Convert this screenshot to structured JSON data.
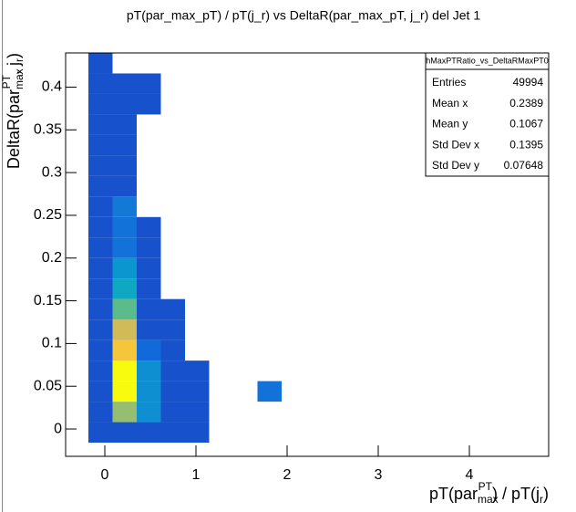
{
  "chart_data": {
    "type": "heatmap",
    "title": "pT(par_max_pT) / pT(j_r) vs DeltaR(par_max_pT, j_r) del Jet 1",
    "x_label": [
      "pT(par",
      "max",
      "PT",
      ") / pT(j",
      "r",
      ")"
    ],
    "y_label": [
      "DeltaR(par",
      "max",
      "PT",
      ", j",
      "r",
      ")"
    ],
    "x_edges": [
      -0.18,
      0.085,
      0.35,
      0.615,
      0.88,
      1.145,
      1.41,
      1.675,
      1.94
    ],
    "y_edges": [
      -0.016,
      0.008,
      0.032,
      0.056,
      0.08,
      0.104,
      0.128,
      0.152,
      0.176,
      0.2,
      0.224,
      0.248,
      0.272,
      0.296,
      0.32,
      0.344,
      0.368,
      0.392,
      0.416,
      0.44
    ],
    "z": [
      [
        800,
        800,
        800,
        800,
        800,
        800,
        800,
        800,
        800,
        800,
        800,
        800,
        800,
        800,
        800,
        800,
        800,
        800,
        800
      ],
      [
        800,
        5200,
        8000,
        8000,
        6800,
        6000,
        4500,
        3200,
        2600,
        1600,
        1600,
        1800,
        800,
        800,
        800,
        800,
        800,
        800,
        null
      ],
      [
        800,
        2400,
        2400,
        2400,
        1400,
        800,
        800,
        800,
        800,
        800,
        800,
        null,
        null,
        null,
        null,
        null,
        800,
        800,
        null
      ],
      [
        800,
        800,
        800,
        800,
        800,
        800,
        800,
        null,
        null,
        null,
        null,
        null,
        null,
        null,
        null,
        null,
        null,
        null,
        null
      ],
      [
        800,
        800,
        800,
        800,
        null,
        null,
        null,
        null,
        null,
        null,
        null,
        null,
        null,
        null,
        null,
        null,
        null,
        null,
        null
      ],
      [
        null,
        null,
        null,
        null,
        null,
        null,
        null,
        null,
        null,
        null,
        null,
        null,
        null,
        null,
        null,
        null,
        null,
        null,
        null
      ],
      [
        null,
        null,
        null,
        null,
        null,
        null,
        null,
        null,
        null,
        null,
        null,
        null,
        null,
        null,
        null,
        null,
        null,
        null,
        null
      ],
      [
        null,
        null,
        1600,
        null,
        null,
        null,
        null,
        null,
        null,
        null,
        null,
        null,
        null,
        null,
        null,
        null,
        null,
        null,
        null
      ]
    ],
    "xlim": [
      -0.43,
      4.87
    ],
    "ylim": [
      -0.032,
      0.44
    ],
    "xticks": [
      0,
      1,
      2,
      3,
      4
    ],
    "yticks": [
      0,
      0.05,
      0.1,
      0.15,
      0.2,
      0.25,
      0.3,
      0.35,
      0.4
    ],
    "stats": {
      "title": "hMaxPTRatio_vs_DeltaRMaxPT0",
      "rows": [
        [
          "Entries",
          49994
        ],
        [
          "Mean x",
          0.2389
        ],
        [
          "Mean y",
          0.1067
        ],
        [
          "Std Dev x",
          0.1395
        ],
        [
          "Std Dev y",
          0.07648
        ]
      ]
    }
  }
}
